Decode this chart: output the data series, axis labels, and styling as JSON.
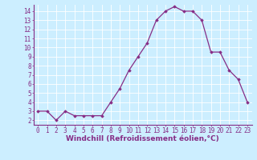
{
  "x": [
    0,
    1,
    2,
    3,
    4,
    5,
    6,
    7,
    8,
    9,
    10,
    11,
    12,
    13,
    14,
    15,
    16,
    17,
    18,
    19,
    20,
    21,
    22,
    23
  ],
  "y": [
    3,
    3,
    2,
    3,
    2.5,
    2.5,
    2.5,
    2.5,
    4,
    5.5,
    7.5,
    9,
    10.5,
    13,
    14,
    14.5,
    14,
    14,
    13,
    9.5,
    9.5,
    7.5,
    6.5,
    4
  ],
  "line_color": "#862d86",
  "marker": "D",
  "marker_size": 1.8,
  "line_width": 0.9,
  "xlabel": "Windchill (Refroidissement éolien,°C)",
  "xlabel_fontsize": 6.5,
  "xlabel_color": "#862d86",
  "background_color": "#cceeff",
  "grid_color": "#ffffff",
  "tick_color": "#862d86",
  "tick_fontsize": 5.5,
  "xlim": [
    -0.5,
    23.5
  ],
  "ylim": [
    1.5,
    14.7
  ],
  "yticks": [
    2,
    3,
    4,
    5,
    6,
    7,
    8,
    9,
    10,
    11,
    12,
    13,
    14
  ],
  "xticks": [
    0,
    1,
    2,
    3,
    4,
    5,
    6,
    7,
    8,
    9,
    10,
    11,
    12,
    13,
    14,
    15,
    16,
    17,
    18,
    19,
    20,
    21,
    22,
    23
  ]
}
